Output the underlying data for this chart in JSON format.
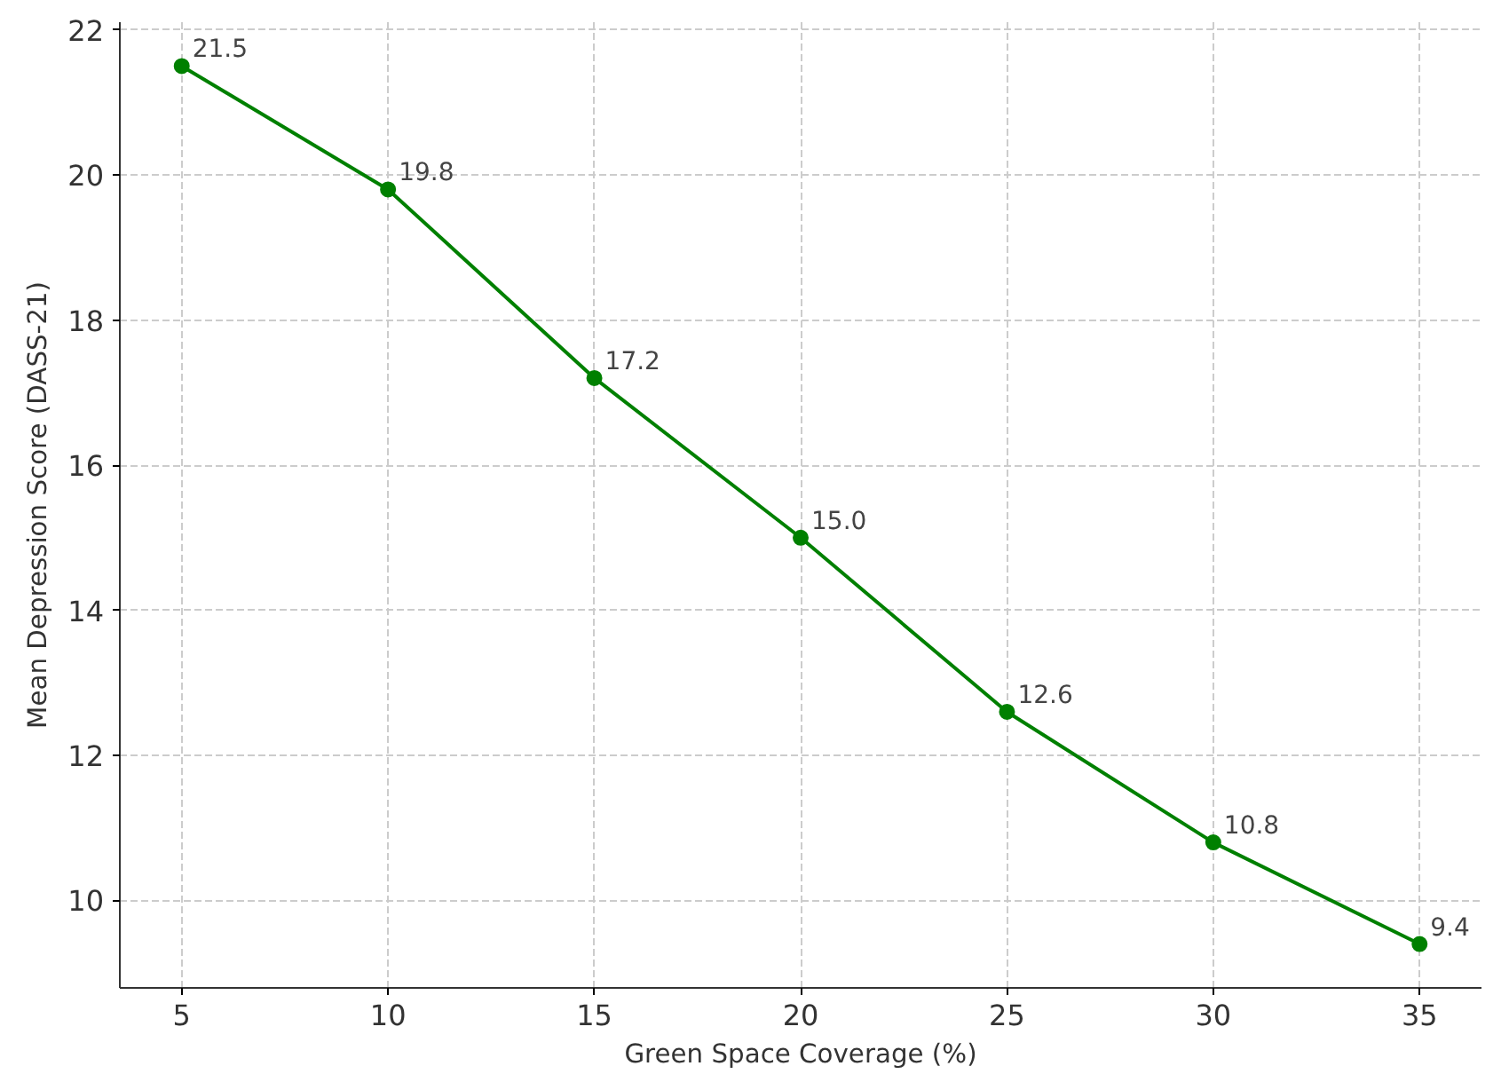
{
  "chart_data": {
    "type": "line",
    "xlabel": "Green Space Coverage (%)",
    "ylabel": "Mean Depression Score (DASS-21)",
    "x": [
      5,
      10,
      15,
      20,
      25,
      30,
      35
    ],
    "series": [
      {
        "color": "#008000",
        "values": [
          21.5,
          19.8,
          17.2,
          15.0,
          12.6,
          10.8,
          9.4
        ]
      }
    ],
    "value_labels": [
      "21.5",
      "19.8",
      "17.2",
      "15.0",
      "12.6",
      "10.8",
      "9.4"
    ],
    "xlim": [
      3.5,
      36.5
    ],
    "ylim": [
      8.795,
      22.105
    ],
    "xticks": [
      5,
      10,
      15,
      20,
      25,
      30,
      35
    ],
    "yticks": [
      10,
      12,
      14,
      16,
      18,
      20,
      22
    ],
    "grid": true,
    "marker": "circle",
    "line_style": "solid"
  }
}
